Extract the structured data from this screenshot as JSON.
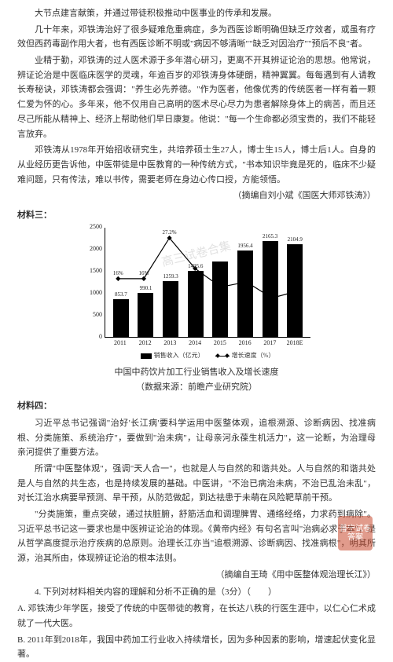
{
  "p1": "大节点建言献策，并通过带徒积极推动中医事业的传承和发展。",
  "p2": "几十年来，邓铁涛治好了很多疑难危重病症，多为西医诊断明确但缺乏疗效者，或虽有疗效但西药毒副作用大者，也有西医诊断不明或\"病因不够清晰\"\"缺乏对因治疗\"\"预后不良\"者。",
  "p3": "业精于勤，邓铁涛的过人医术源于多年潜心研习，更离不开其辨证论治的思想。他常说，辨证论治是中医临床医学的灵魂，年逾百岁的邓铁涛身体硬朗，精神翼翼。每每遇到有人请教长寿秘诀，邓铁涛都会强调：\"养生必先养德。\"作为医者，他像优秀的传统医者一样有着一颗仁爱为怀的心。多年来，他不仅用自己高明的医术尽心尽力为患者解除身体上的病苦，而且还尽己所能从精神上、经济上帮助他们早日康复。他说：\"每一个生命都必须宝贵的，我们不能轻言放弃。",
  "p4": "邓铁涛从1978年开始招收研究生，共培养硕士生27人，博士生15人，博士后1人。自身的从业经历更告诉他，中医带徒是中医教育的一种传统方式，\"书本知识毕竟是死的，临床不少疑难问题，只有传法，难以书传，需要老师在身边心传口授，方能领悟。",
  "cite1": "（摘编自刘小斌《国医大师邓铁涛》）",
  "sec3": "材料三：",
  "chart": {
    "ylim_max": 2500,
    "yticks": [
      0,
      500,
      1000,
      1500,
      2000,
      2500
    ],
    "years": [
      "2011",
      "2012",
      "2013",
      "2014",
      "2015",
      "2016",
      "2017",
      "2018E"
    ],
    "bar_values": [
      853.7,
      990.1,
      1259.3,
      1495.6,
      1699.9,
      1956.4,
      2165.3,
      2104.9
    ],
    "bar_labels": [
      "853.7",
      "990.1",
      "1259.3",
      "1495.6",
      "",
      "1956.4",
      "2165.3",
      "2104.9"
    ],
    "growth_pct": [
      16.0,
      16.0,
      27.2,
      18.8,
      13.7,
      15.1,
      10.7,
      12.6
    ],
    "growth_labels": [
      "16%",
      "16%",
      "27.2%",
      "",
      "",
      "",
      "",
      ""
    ],
    "growth_y_max": 30,
    "bar_color": "#000000",
    "line_color": "#000000",
    "legend_bar": "销售收入（亿元）",
    "legend_line": "增长速度（%）",
    "title": "中国中药饮片加工行业销售收入及增长速度",
    "source": "（数据来源：前瞻产业研究院）"
  },
  "sec4": "材料四：",
  "p5": "习近平总书记强调\"治好'长江病'要科学运用中医整体观，追根溯源、诊断病因、找准病根、分类施策、系统治疗\"，要做到\"治未病\"，让母亲河永葆生机活力\"，这一论断，为治理母亲河提供了重要方法。",
  "p6": "所谓\"中医整体观\"，强调\"天人合一\"，也就是人与自然的和谐共处。人与自然的和谐共处是人与自然的共生态，也是持续发展的基础。中医讲，\"不治已病治未病，不治已乱治未乱\"，对长江治水病要旱预测、旱干预，从防范做起，到达祛患于未萌在风险靶草前干预。",
  "p7": "\"分类施策，重点突破，通过扶脏腑，舒筋活血和调理脾胃、通络经络，力求药到病除\"。习近平总书记这一要求也是中医辨证论治的体现。《黄帝内经》有句名言叫\"治病必求于本\"，是从哲学高度提示治疗疾病的总原则。治理长江亦当\"追根溯源、诊断病因、找准病根\"，明其所源，治其所由，体现辨证论治的根本法则。",
  "cite2": "（摘编自王琦《用中医整体观治理长江》）",
  "q": "4. 下列对材料相关内容的理解和分析不正确的是（3分）（　　）",
  "optA": "A. 邓铁涛少年学医，接受了传统的中医带徒的教育，在长达八秩的行医生涯中，以仁心仁术成就了一代大医。",
  "optB": "B. 2011年到2018年，我国中药加工行业收入持续增长，因为多种因素的影响，增速起伏变化显著。",
  "wm_stamp": "普宁试卷答案",
  "wm_text": "高三试卷合集"
}
